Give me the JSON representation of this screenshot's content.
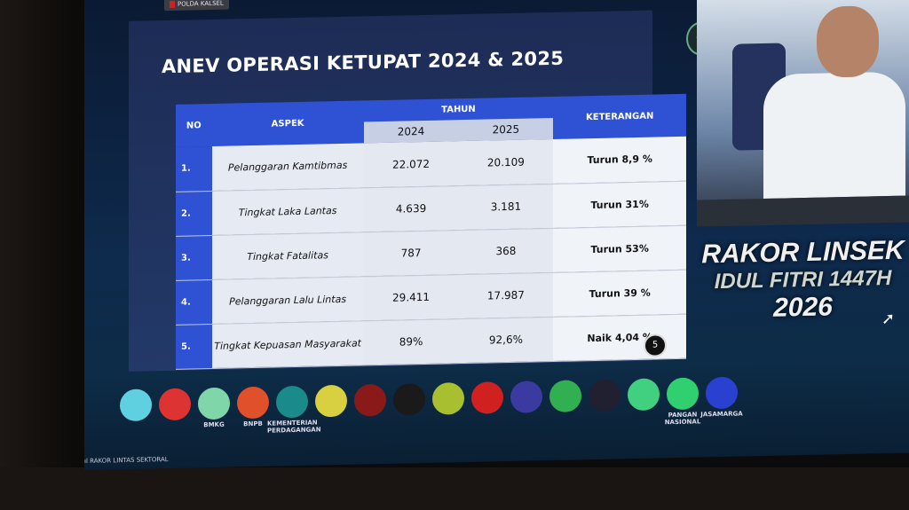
{
  "top_badge": "POLDA KALSEL",
  "slide": {
    "title": "ANEV OPERASI KETUPAT 2024 & 2025",
    "headers": {
      "no": "NO",
      "aspek": "ASPEK",
      "tahun": "TAHUN",
      "y1": "2024",
      "y2": "2025",
      "keterangan": "KETERANGAN"
    },
    "rows": [
      {
        "no": "1.",
        "aspek": "Pelanggaran Kamtibmas",
        "v2024": "22.072",
        "v2025": "20.109",
        "ket": "Turun 8,9 %"
      },
      {
        "no": "2.",
        "aspek": "Tingkat Laka Lantas",
        "v2024": "4.639",
        "v2025": "3.181",
        "ket": "Turun 31%"
      },
      {
        "no": "3.",
        "aspek": "Tingkat Fatalitas",
        "v2024": "787",
        "v2025": "368",
        "ket": "Turun 53%"
      },
      {
        "no": "4.",
        "aspek": "Pelanggaran Lalu Lintas",
        "v2024": "29.411",
        "v2025": "17.987",
        "ket": "Turun 39 %"
      },
      {
        "no": "5.",
        "aspek": "Tingkat Kepuasan Masyarakat",
        "v2024": "89%",
        "v2025": "92,6%",
        "ket": "Naik 4,04 %"
      }
    ],
    "page_number": "5"
  },
  "event": {
    "line1": "RAKOR LINSEK",
    "line2": "IDUL FITRI 1447H",
    "line3": "2026"
  },
  "logos": [
    {
      "name": "logo-1",
      "color": "#5fd0e0",
      "label": ""
    },
    {
      "name": "logo-2",
      "color": "#d33",
      "label": ""
    },
    {
      "name": "bmkg-logo",
      "color": "#7fd6a8",
      "label": "BMKG"
    },
    {
      "name": "bnpb-logo",
      "color": "#e0502a",
      "label": "BNPB"
    },
    {
      "name": "kemendag-logo",
      "color": "#1a8a8a",
      "label": "KEMENTERIAN PERDAGANGAN"
    },
    {
      "name": "pu-logo",
      "color": "#d8d040",
      "label": ""
    },
    {
      "name": "logo-7",
      "color": "#8a1a1a",
      "label": ""
    },
    {
      "name": "logo-8",
      "color": "#1a1a1a",
      "label": ""
    },
    {
      "name": "polri-logo",
      "color": "#a8c030",
      "label": ""
    },
    {
      "name": "tni-logo",
      "color": "#d02020",
      "label": ""
    },
    {
      "name": "kemenhub-logo",
      "color": "#3a3aa0",
      "label": ""
    },
    {
      "name": "kemenag-logo",
      "color": "#30b050",
      "label": ""
    },
    {
      "name": "logo-13",
      "color": "#202030",
      "label": ""
    },
    {
      "name": "logo-14",
      "color": "#40d080",
      "label": ""
    },
    {
      "name": "pangan-logo",
      "color": "#30d070",
      "label": "PANGAN NASIONAL"
    },
    {
      "name": "jasamarga-logo",
      "color": "#2a40d0",
      "label": "JASAMARGA"
    }
  ],
  "footer": "RAKOR LINTAS SEKTORAL"
}
